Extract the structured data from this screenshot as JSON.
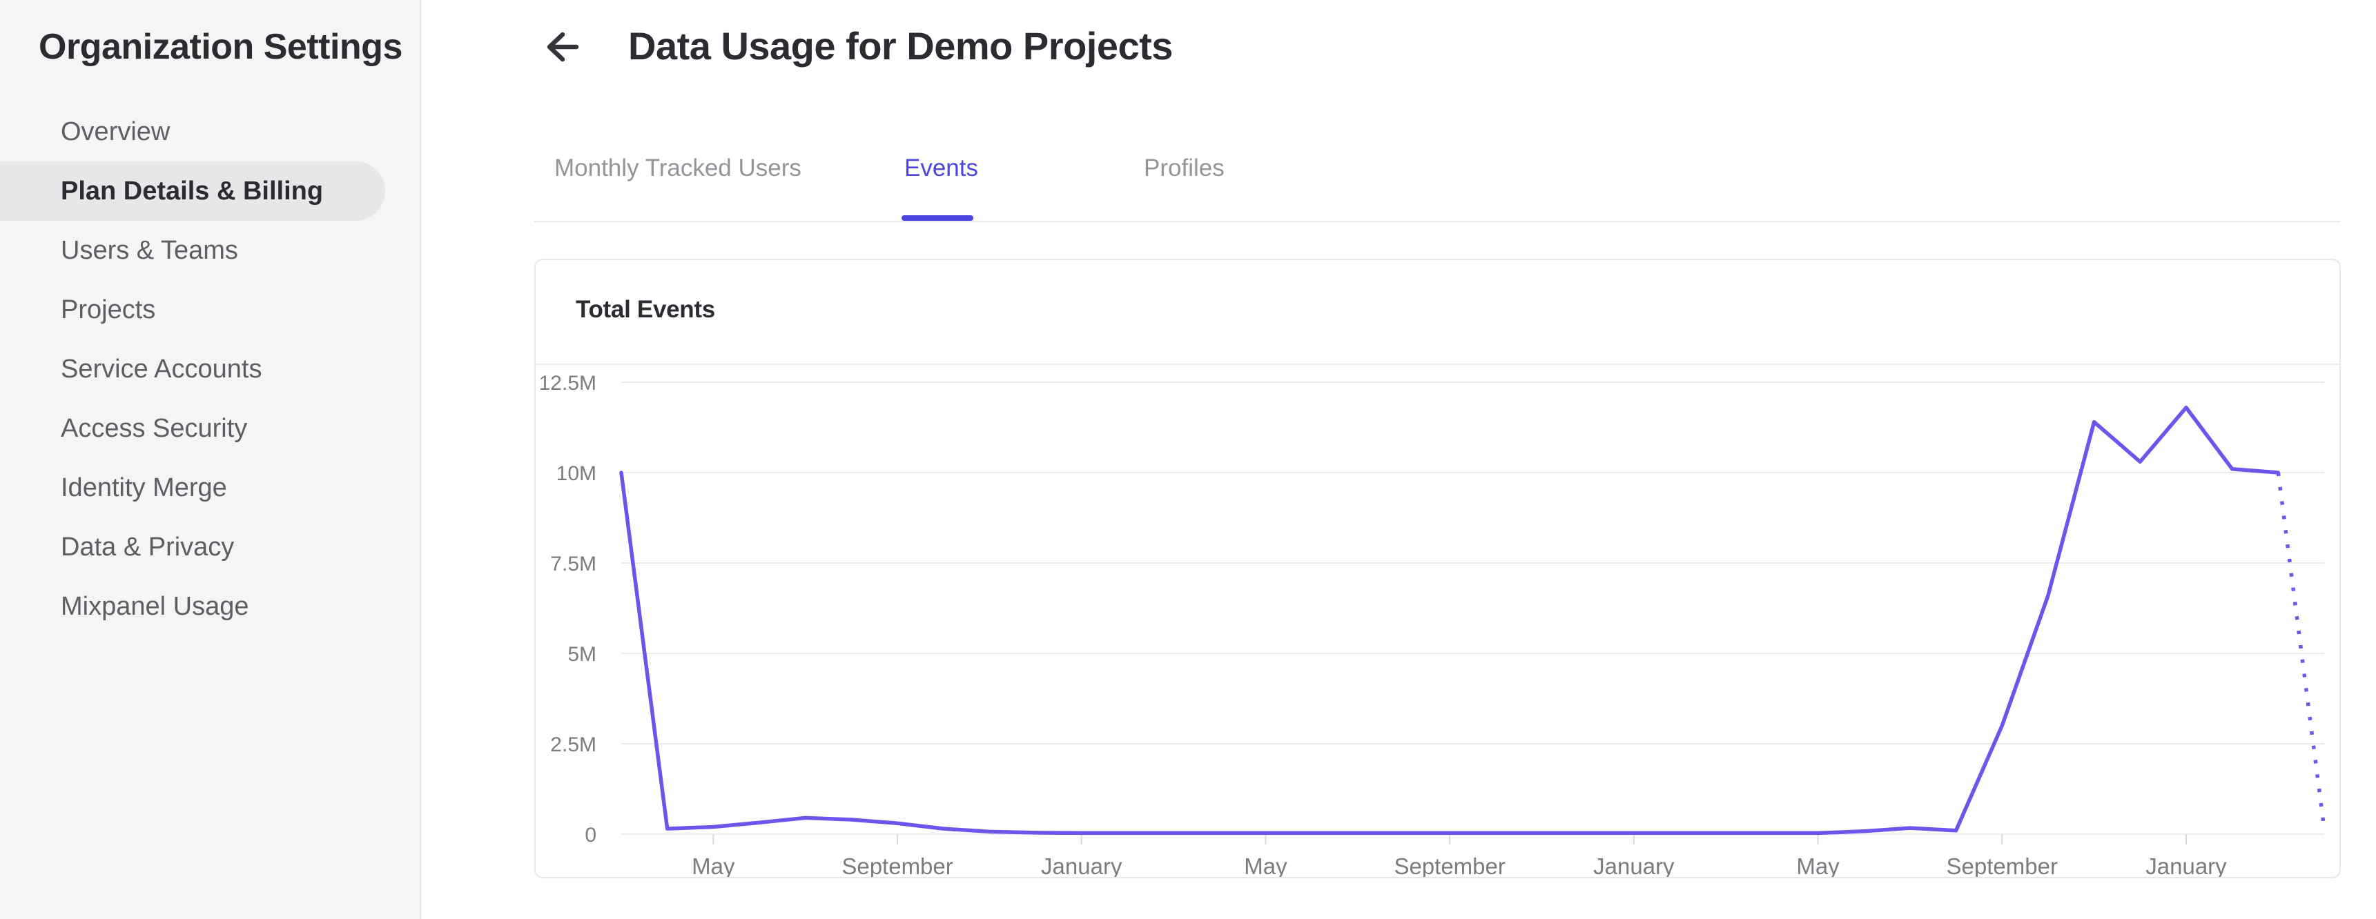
{
  "sidebar": {
    "title": "Organization Settings",
    "items": [
      {
        "label": "Overview",
        "active": false
      },
      {
        "label": "Plan Details & Billing",
        "active": true
      },
      {
        "label": "Users & Teams",
        "active": false
      },
      {
        "label": "Projects",
        "active": false
      },
      {
        "label": "Service Accounts",
        "active": false
      },
      {
        "label": "Access Security",
        "active": false
      },
      {
        "label": "Identity Merge",
        "active": false
      },
      {
        "label": "Data & Privacy",
        "active": false
      },
      {
        "label": "Mixpanel Usage",
        "active": false
      }
    ]
  },
  "header": {
    "title": "Data Usage for Demo Projects",
    "back_icon": "left-arrow"
  },
  "tabs": [
    {
      "label": "Monthly Tracked Users",
      "active": false
    },
    {
      "label": "Events",
      "active": true
    },
    {
      "label": "Profiles",
      "active": false
    }
  ],
  "card": {
    "title": "Total Events"
  },
  "colors": {
    "accent_active_tab": "#4f46e0",
    "tab_underline": "#4f44e0",
    "chart_line": "#6c55eb",
    "sidebar_bg": "#f5f5f6",
    "sidebar_selected_bg": "#e7e7ea",
    "grid_line": "#ebebed",
    "axis_label": "#7b7b81",
    "dark_text": "#2b2b31",
    "muted_text": "#5d5d64"
  },
  "chart_data": {
    "type": "line",
    "title": "Total Events",
    "unit": "events",
    "ylim": [
      0,
      12500000
    ],
    "y_tick_labels": [
      "12.5M",
      "10M",
      "7.5M",
      "5M",
      "2.5M",
      "0"
    ],
    "y_tick_values_millions": [
      12.5,
      10,
      7.5,
      5,
      2.5,
      0
    ],
    "x_tick_labels": [
      "May",
      "September",
      "January",
      "May",
      "September",
      "January",
      "May",
      "September",
      "January"
    ],
    "x_tick_indices": [
      2,
      6,
      10,
      14,
      18,
      22,
      26,
      30,
      34
    ],
    "n_points": 38,
    "points_are_monthly": true,
    "values_millions": [
      10,
      0.15,
      0.2,
      0.32,
      0.45,
      0.4,
      0.3,
      0.15,
      0.07,
      0.04,
      0.03,
      0.03,
      0.03,
      0.03,
      0.03,
      0.03,
      0.03,
      0.03,
      0.03,
      0.03,
      0.03,
      0.03,
      0.03,
      0.03,
      0.03,
      0.03,
      0.03,
      0.08,
      0.17,
      0.1,
      3.0,
      6.6,
      11.4,
      10.3,
      11.8,
      10.1,
      10.0,
      0.15
    ],
    "dotted_final_segment": true,
    "grid": "horizontal",
    "legend": false
  }
}
